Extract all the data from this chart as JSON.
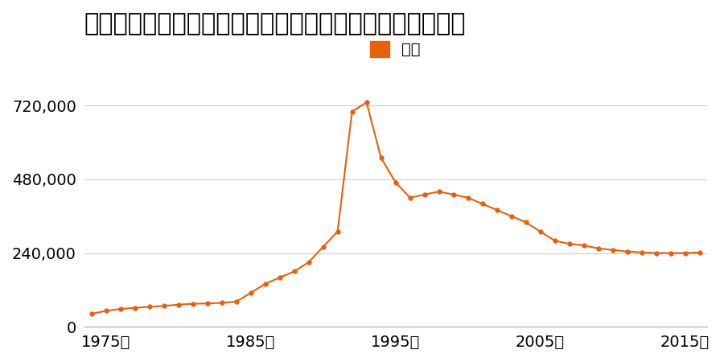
{
  "title": "大阪府大阪市城東区古市中通５丁目４５番１５の地価推移",
  "legend_label": "価格",
  "line_color": "#e8600a",
  "marker_color": "#e8600a",
  "background_color": "#ffffff",
  "years": [
    1974,
    1975,
    1976,
    1977,
    1978,
    1979,
    1980,
    1981,
    1982,
    1983,
    1984,
    1985,
    1986,
    1987,
    1988,
    1989,
    1990,
    1991,
    1992,
    1993,
    1994,
    1995,
    1996,
    1997,
    1998,
    1999,
    2000,
    2001,
    2002,
    2003,
    2004,
    2005,
    2006,
    2007,
    2008,
    2009,
    2010,
    2011,
    2012,
    2013,
    2014,
    2015,
    2016
  ],
  "values": [
    42000,
    52000,
    58000,
    62000,
    65000,
    68000,
    72000,
    75000,
    76000,
    78000,
    82000,
    110000,
    140000,
    160000,
    180000,
    210000,
    260000,
    310000,
    700000,
    730000,
    550000,
    470000,
    420000,
    430000,
    440000,
    430000,
    420000,
    400000,
    380000,
    360000,
    340000,
    310000,
    280000,
    270000,
    265000,
    255000,
    250000,
    245000,
    242000,
    240000,
    240000,
    240000,
    242000
  ],
  "ylim": [
    0,
    800000
  ],
  "yticks": [
    0,
    240000,
    480000,
    720000
  ],
  "xticks": [
    1975,
    1985,
    1995,
    2005,
    2015
  ],
  "xlabel_suffix": "年",
  "grid_color": "#cccccc",
  "title_fontsize": 22,
  "legend_fontsize": 14,
  "tick_fontsize": 14
}
